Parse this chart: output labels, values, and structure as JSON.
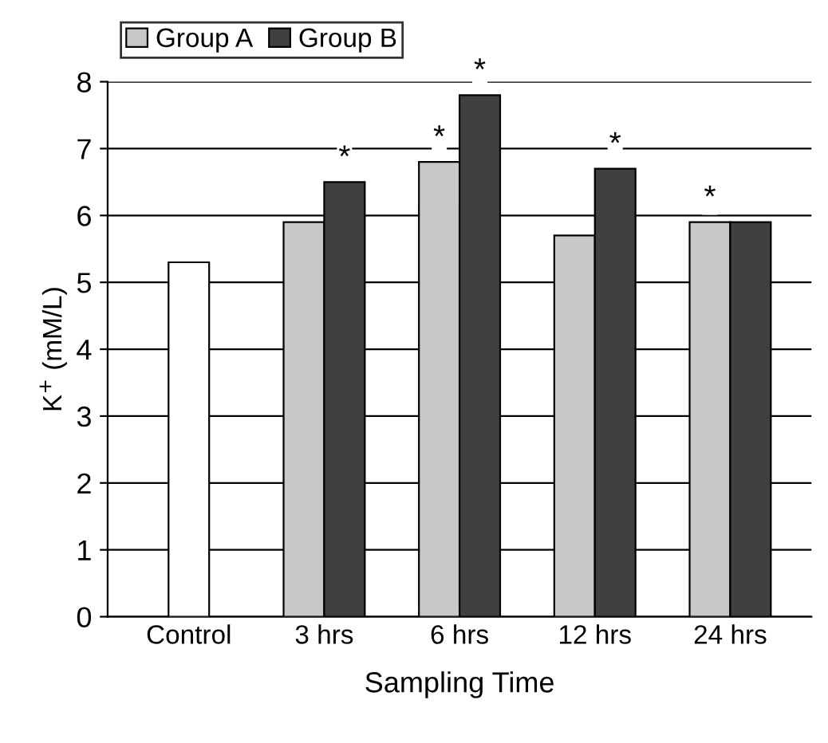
{
  "chart_data": {
    "type": "bar",
    "xlabel": "Sampling Time",
    "ylabel": "K$^{+}$ (mM/L)",
    "categories": [
      "Control",
      "3 hrs",
      "6 hrs",
      "12 hrs",
      "24 hrs"
    ],
    "series": [
      {
        "color": "#ffffff",
        "values": [
          5.3,
          null,
          null,
          null,
          null
        ]
      },
      {
        "name": "Group A",
        "color": "#c8c8c8",
        "values": [
          null,
          5.9,
          6.8,
          5.7,
          5.9
        ]
      },
      {
        "name": "Group B",
        "color": "#404040",
        "values": [
          null,
          6.5,
          7.8,
          6.7,
          5.9
        ]
      }
    ],
    "annotations": [
      {
        "text": "*",
        "x": "3 hrs",
        "y": 6.5
      },
      {
        "text": "*",
        "x": "6 hrs",
        "y": 6.8
      },
      {
        "text": "*",
        "x": "6 hrs",
        "y": 7.8
      },
      {
        "text": "*",
        "x": "12 hrs",
        "y": 6.7
      },
      {
        "text": "*",
        "x": "24 hrs",
        "y": 5.9
      }
    ],
    "ylim": [
      0,
      8
    ],
    "yticks": [
      0,
      1,
      2,
      3,
      4,
      5,
      6,
      7,
      8
    ],
    "grid": "y",
    "legend": "top left"
  }
}
